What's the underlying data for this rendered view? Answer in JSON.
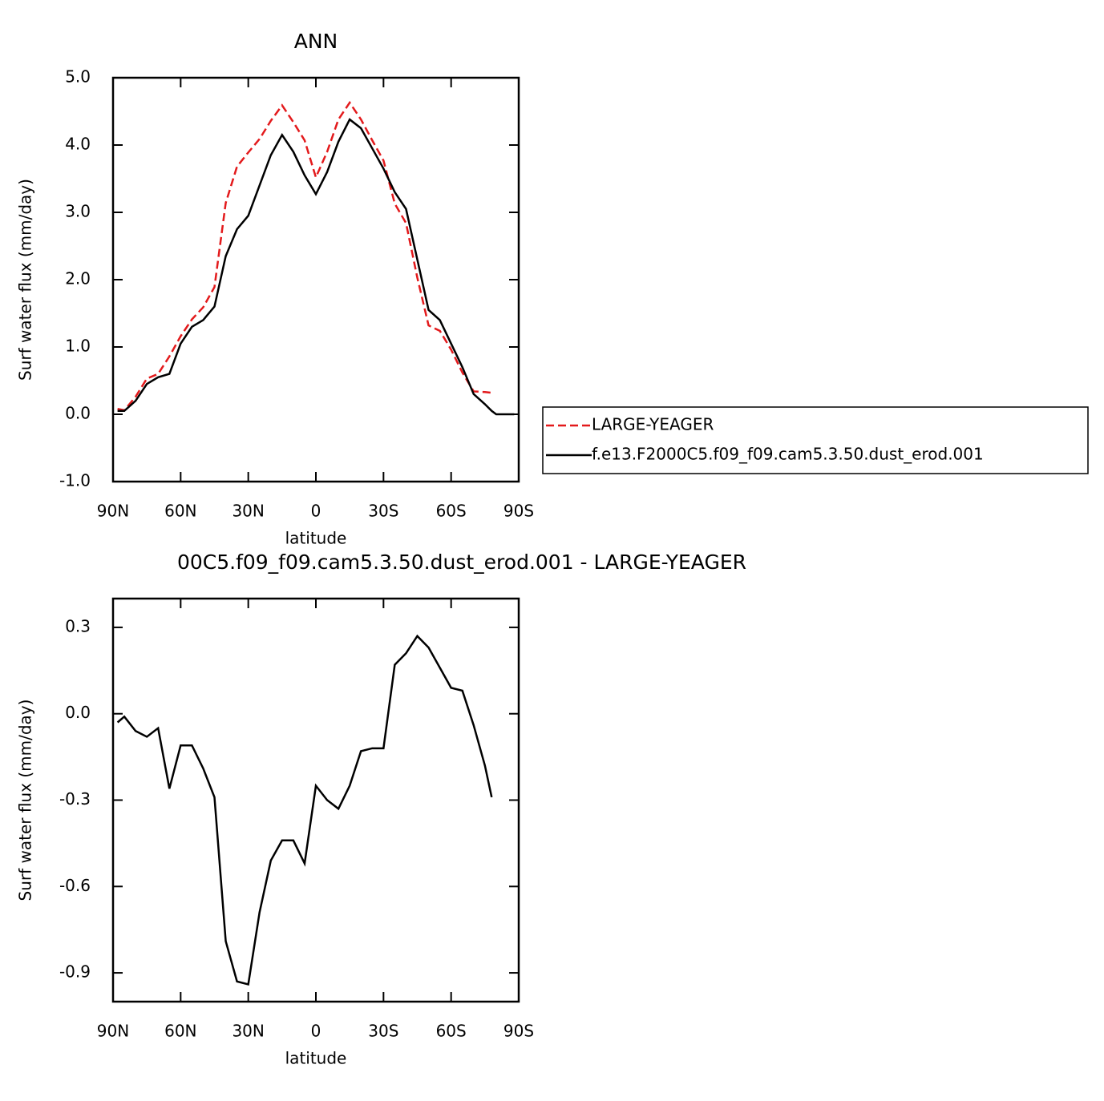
{
  "chart_data": [
    {
      "type": "line",
      "title": "ANN",
      "xlabel": "latitude",
      "ylabel": "Surf water flux (mm/day)",
      "x": [
        88,
        85,
        80,
        75,
        70,
        65,
        60,
        55,
        50,
        45,
        40,
        35,
        30,
        25,
        20,
        15,
        10,
        5,
        0,
        -5,
        -10,
        -15,
        -20,
        -25,
        -30,
        -35,
        -40,
        -45,
        -50,
        -55,
        -60,
        -65,
        -70,
        -75,
        -78,
        -80,
        -85,
        -88
      ],
      "series": [
        {
          "name": "LARGE-YEAGER",
          "color": "#e31a1c",
          "dash": true,
          "values": [
            0.08,
            0.06,
            0.26,
            0.53,
            0.6,
            0.86,
            1.16,
            1.41,
            1.59,
            1.89,
            3.14,
            3.68,
            3.89,
            4.09,
            4.36,
            4.59,
            4.34,
            4.07,
            3.52,
            3.9,
            4.38,
            4.63,
            4.38,
            4.07,
            3.77,
            3.13,
            2.84,
            2.03,
            1.32,
            1.24,
            0.96,
            0.62,
            0.34,
            0.33,
            0.32,
            null,
            null,
            null
          ]
        },
        {
          "name": "f.e13.F2000C5.f09_f09.cam5.3.50.dust_erod.001",
          "color": "#000000",
          "dash": false,
          "values": [
            0.05,
            0.05,
            0.2,
            0.45,
            0.55,
            0.6,
            1.05,
            1.3,
            1.4,
            1.6,
            2.35,
            2.75,
            2.95,
            3.4,
            3.85,
            4.15,
            3.9,
            3.55,
            3.27,
            3.6,
            4.05,
            4.38,
            4.25,
            3.95,
            3.65,
            3.3,
            3.05,
            2.3,
            1.55,
            1.4,
            1.05,
            0.7,
            0.3,
            0.15,
            0.05,
            0.0,
            0.0,
            0.0
          ]
        }
      ],
      "xlim": [
        90,
        -90
      ],
      "xticks": [
        {
          "value": 90,
          "label": "90N"
        },
        {
          "value": 60,
          "label": "60N"
        },
        {
          "value": 30,
          "label": "30N"
        },
        0,
        {
          "value": -30,
          "label": "30S"
        },
        {
          "value": -60,
          "label": "60S"
        },
        {
          "value": -90,
          "label": "90S"
        }
      ],
      "ylim": [
        -1,
        5
      ],
      "yticks": [
        {
          "value": -1,
          "label": "-1.0"
        },
        {
          "value": 0,
          "label": "0.0"
        },
        {
          "value": 1,
          "label": "1.0"
        },
        {
          "value": 2,
          "label": "2.0"
        },
        {
          "value": 3,
          "label": "3.0"
        },
        {
          "value": 4,
          "label": "4.0"
        },
        {
          "value": 5,
          "label": "5.0"
        }
      ],
      "legend": "right"
    },
    {
      "type": "line",
      "title": "00C5.f09_f09.cam5.3.50.dust_erod.001 - LARGE-YEAGER",
      "xlabel": "latitude",
      "ylabel": "Surf water flux (mm/day)",
      "x": [
        88,
        85,
        80,
        75,
        70,
        65,
        60,
        55,
        50,
        45,
        40,
        35,
        30,
        25,
        20,
        15,
        10,
        5,
        0,
        -5,
        -10,
        -15,
        -20,
        -25,
        -30,
        -35,
        -40,
        -45,
        -50,
        -55,
        -60,
        -65,
        -70,
        -75,
        -78
      ],
      "series": [
        {
          "color": "#000000",
          "dash": false,
          "values": [
            -0.03,
            -0.01,
            -0.06,
            -0.08,
            -0.05,
            -0.26,
            -0.11,
            -0.11,
            -0.19,
            -0.29,
            -0.79,
            -0.93,
            -0.94,
            -0.69,
            -0.51,
            -0.44,
            -0.44,
            -0.52,
            -0.25,
            -0.3,
            -0.33,
            -0.25,
            -0.13,
            -0.12,
            -0.12,
            0.17,
            0.21,
            0.27,
            0.23,
            0.16,
            0.09,
            0.08,
            -0.04,
            -0.18,
            -0.29
          ]
        }
      ],
      "xlim": [
        90,
        -90
      ],
      "xticks": [
        {
          "value": 90,
          "label": "90N"
        },
        {
          "value": 60,
          "label": "60N"
        },
        {
          "value": 30,
          "label": "30N"
        },
        0,
        {
          "value": -30,
          "label": "30S"
        },
        {
          "value": -60,
          "label": "60S"
        },
        {
          "value": -90,
          "label": "90S"
        }
      ],
      "ylim": [
        -1,
        0.4
      ],
      "yticks": [
        -0.9,
        -0.6,
        -0.3,
        {
          "value": 0,
          "label": "0.0"
        },
        0.3
      ]
    }
  ]
}
